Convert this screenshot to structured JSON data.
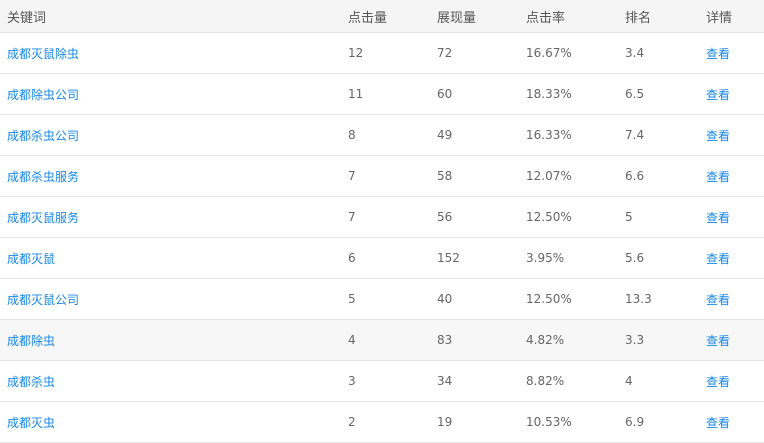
{
  "headers": [
    "关键词",
    "点击量",
    "展现量",
    "点击率",
    "排名",
    "详情"
  ],
  "rows": [
    [
      "成都灭鼠除虫",
      "12",
      "72",
      "16.67%",
      "3.4",
      "查看"
    ],
    [
      "成都除虫公司",
      "11",
      "60",
      "18.33%",
      "6.5",
      "查看"
    ],
    [
      "成都杀虫公司",
      "8",
      "49",
      "16.33%",
      "7.4",
      "查看"
    ],
    [
      "成都杀虫服务",
      "7",
      "58",
      "12.07%",
      "6.6",
      "查看"
    ],
    [
      "成都灭鼠服务",
      "7",
      "56",
      "12.50%",
      "5",
      "查看"
    ],
    [
      "成都灭鼠",
      "6",
      "152",
      "3.95%",
      "5.6",
      "查看"
    ],
    [
      "成都灭鼠公司",
      "5",
      "40",
      "12.50%",
      "13.3",
      "查看"
    ],
    [
      "成都除虫",
      "4",
      "83",
      "4.82%",
      "3.3",
      "查看"
    ],
    [
      "成都杀虫",
      "3",
      "34",
      "8.82%",
      "4",
      "查看"
    ],
    [
      "成都灭虫",
      "2",
      "19",
      "10.53%",
      "6.9",
      "查看"
    ]
  ],
  "hover_row": 7,
  "link_color": "#1787e6"
}
